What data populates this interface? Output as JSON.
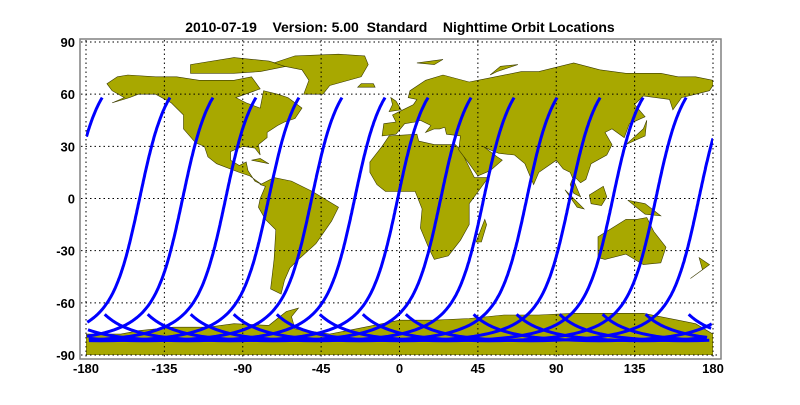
{
  "title": "2010-07-19    Version: 5.00  Standard    Nighttime Orbit Locations",
  "colors": {
    "land": "#a8a800",
    "land_edge": "#3a3a00",
    "orbit": "#0000ff",
    "grid": "#000000",
    "frame": "#808080"
  },
  "chart_data": {
    "type": "map",
    "title": "2010-07-19    Version: 5.00  Standard    Nighttime Orbit Locations",
    "xlim": [
      -180,
      180
    ],
    "ylim": [
      -90,
      90
    ],
    "grid": true,
    "xticks": [
      "-180",
      "-135",
      "-90",
      "-45",
      "0",
      "45",
      "90",
      "135",
      "180"
    ],
    "yticks": [
      "90",
      "60",
      "30",
      "0",
      "-30",
      "-60",
      "-90"
    ],
    "orbit_tracks": {
      "count": 14,
      "northernmost_latitude": 58,
      "northern_end_longitudes": [
        -131.8,
        -107.1,
        -82.4,
        -57.7,
        -33.0,
        -8.3,
        16.4,
        41.1,
        65.8,
        90.5,
        115.2,
        139.9,
        164.6,
        -170.7
      ]
    }
  }
}
